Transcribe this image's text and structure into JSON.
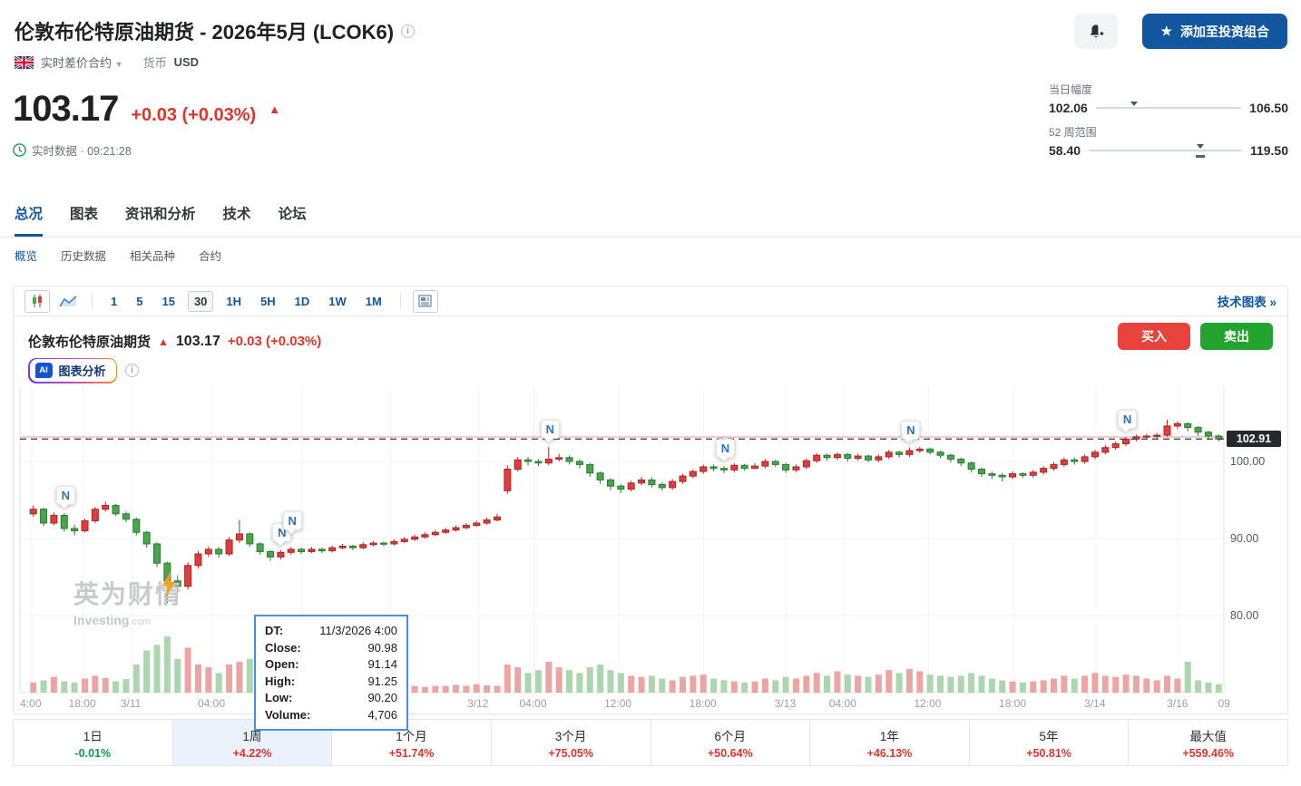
{
  "header": {
    "title": "伦敦布伦特原油期货 - 2026年5月 (LCOK6)",
    "cfd_label": "实时差价合约",
    "currency_label": "货币",
    "currency_value": "USD",
    "price": "103.17",
    "change": "+0.03 (+0.03%)",
    "status_text": "实时数据 · 09:21:28",
    "portfolio_button_label": "添加至投资组合",
    "day_range": {
      "label": "当日幅度",
      "low": "102.06",
      "high": "106.50",
      "pos": 0.26
    },
    "week_range": {
      "label": "52 周范围",
      "low": "58.40",
      "high": "119.50",
      "pos": 0.73
    }
  },
  "tabs": {
    "items": [
      "总况",
      "图表",
      "资讯和分析",
      "技术",
      "论坛"
    ]
  },
  "subtabs": {
    "items": [
      "概览",
      "历史数据",
      "相关品种",
      "合约"
    ]
  },
  "toolbar": {
    "intervals": [
      "1",
      "5",
      "15",
      "30",
      "1H",
      "5H",
      "1D",
      "1W",
      "1M"
    ],
    "active_interval": "30",
    "tech_chart_link": "技术图表 »"
  },
  "chart_header": {
    "name": "伦敦布伦特原油期货",
    "price": "103.17",
    "change": "+0.03 (+0.03%)",
    "buy_label": "买入",
    "sell_label": "卖出",
    "ai_badge": "AI",
    "ai_label": "图表分析"
  },
  "tooltip": {
    "rows": [
      {
        "k": "DT:",
        "v": "11/3/2026 4:00"
      },
      {
        "k": "Close:",
        "v": "90.98"
      },
      {
        "k": "Open:",
        "v": "91.14"
      },
      {
        "k": "High:",
        "v": "91.25"
      },
      {
        "k": "Low:",
        "v": "90.20"
      },
      {
        "k": "Volume:",
        "v": "4,706"
      }
    ]
  },
  "watermark": {
    "cn": "英为财情",
    "en_bold": "Investing",
    "en_suffix": ".com"
  },
  "performance": {
    "items": [
      {
        "label": "1日",
        "value": "-0.01%",
        "dir": "down"
      },
      {
        "label": "1周",
        "value": "+4.22%",
        "dir": "up"
      },
      {
        "label": "1个月",
        "value": "+51.74%",
        "dir": "up"
      },
      {
        "label": "3个月",
        "value": "+75.05%",
        "dir": "up"
      },
      {
        "label": "6个月",
        "value": "+50.64%",
        "dir": "up"
      },
      {
        "label": "1年",
        "value": "+46.13%",
        "dir": "up"
      },
      {
        "label": "5年",
        "value": "+50.81%",
        "dir": "up"
      },
      {
        "label": "最大值",
        "value": "+559.46%",
        "dir": "up"
      }
    ]
  },
  "chart_data": {
    "type": "candlestick+volume",
    "symbol": "LCOK6",
    "interval": "30",
    "y_ticks": [
      100.0,
      90.0,
      80.0
    ],
    "last_price": 102.91,
    "ref_price": 103.17,
    "x_labels": [
      {
        "t": "4:00",
        "p": 0.003
      },
      {
        "t": "18:00",
        "p": 0.046
      },
      {
        "t": "3/11",
        "p": 0.087
      },
      {
        "t": "04:00",
        "p": 0.154
      },
      {
        "t": "12:00",
        "p": 0.229
      },
      {
        "t": "18:00",
        "p": 0.303
      },
      {
        "t": "3/12",
        "p": 0.377
      },
      {
        "t": "04:00",
        "p": 0.423
      },
      {
        "t": "12:00",
        "p": 0.494
      },
      {
        "t": "18:00",
        "p": 0.565
      },
      {
        "t": "3/13",
        "p": 0.634
      },
      {
        "t": "04:00",
        "p": 0.682
      },
      {
        "t": "12:00",
        "p": 0.753
      },
      {
        "t": "18:00",
        "p": 0.824
      },
      {
        "t": "3/14",
        "p": 0.893
      },
      {
        "t": "3/16",
        "p": 0.962
      },
      {
        "t": "09",
        "p": 1.0
      }
    ],
    "news_markers": [
      {
        "i": 3
      },
      {
        "i": 24
      },
      {
        "i": 25,
        "dy": -9
      },
      {
        "i": 50
      },
      {
        "i": 67
      },
      {
        "i": 85
      },
      {
        "i": 106
      }
    ],
    "candles": [
      [
        93.2,
        93.8,
        94.3,
        92.8
      ],
      [
        93.8,
        92.0,
        94.0,
        91.6
      ],
      [
        92.0,
        93.0,
        93.4,
        91.7
      ],
      [
        93.0,
        91.3,
        93.3,
        90.9
      ],
      [
        91.3,
        91.0,
        91.8,
        90.4
      ],
      [
        91.0,
        92.3,
        92.6,
        90.8
      ],
      [
        92.3,
        93.8,
        94.1,
        92.0
      ],
      [
        93.8,
        94.3,
        94.8,
        93.5
      ],
      [
        94.3,
        93.2,
        94.5,
        92.9
      ],
      [
        93.2,
        92.5,
        93.5,
        92.1
      ],
      [
        92.5,
        90.8,
        92.7,
        90.4
      ],
      [
        90.8,
        89.3,
        91.0,
        88.8
      ],
      [
        89.3,
        86.8,
        89.5,
        86.3
      ],
      [
        86.8,
        84.5,
        87.0,
        81.6
      ],
      [
        84.5,
        83.8,
        85.2,
        83.0
      ],
      [
        83.8,
        86.5,
        86.9,
        83.4
      ],
      [
        86.5,
        88.0,
        88.4,
        86.1
      ],
      [
        88.0,
        88.6,
        89.0,
        87.6
      ],
      [
        88.6,
        88.0,
        88.9,
        87.5
      ],
      [
        88.0,
        89.8,
        90.2,
        87.7
      ],
      [
        89.8,
        90.6,
        92.4,
        89.4
      ],
      [
        90.6,
        89.3,
        90.8,
        88.9
      ],
      [
        89.3,
        88.3,
        89.5,
        87.9
      ],
      [
        88.3,
        87.6,
        88.5,
        87.1
      ],
      [
        87.6,
        88.2,
        88.5,
        87.3
      ],
      [
        88.2,
        88.6,
        88.9,
        87.9
      ],
      [
        88.6,
        88.3,
        88.8,
        88.0
      ],
      [
        88.3,
        88.6,
        88.9,
        88.1
      ],
      [
        88.6,
        88.4,
        88.8,
        88.1
      ],
      [
        88.4,
        88.8,
        89.1,
        88.2
      ],
      [
        88.8,
        89.0,
        89.3,
        88.6
      ],
      [
        89.0,
        88.8,
        89.2,
        88.5
      ],
      [
        88.8,
        89.2,
        89.5,
        88.6
      ],
      [
        89.2,
        89.4,
        89.7,
        89.0
      ],
      [
        89.4,
        89.3,
        89.6,
        89.0
      ],
      [
        89.3,
        89.6,
        89.9,
        89.1
      ],
      [
        89.6,
        89.9,
        90.2,
        89.4
      ],
      [
        89.9,
        90.2,
        90.5,
        89.7
      ],
      [
        90.2,
        90.5,
        90.8,
        90.0
      ],
      [
        90.5,
        90.8,
        91.1,
        90.3
      ],
      [
        90.8,
        91.1,
        91.4,
        90.6
      ],
      [
        91.1,
        91.4,
        91.7,
        90.9
      ],
      [
        91.4,
        91.7,
        92.0,
        91.2
      ],
      [
        91.7,
        92.0,
        92.3,
        91.5
      ],
      [
        92.0,
        92.4,
        92.7,
        91.8
      ],
      [
        92.4,
        92.8,
        93.2,
        92.2
      ],
      [
        96.2,
        99.0,
        99.5,
        95.8
      ],
      [
        99.0,
        100.2,
        100.6,
        98.7
      ],
      [
        100.2,
        100.0,
        100.6,
        99.5
      ],
      [
        100.0,
        99.8,
        100.3,
        99.4
      ],
      [
        99.8,
        100.3,
        101.9,
        99.5
      ],
      [
        100.3,
        100.5,
        101.0,
        100.0
      ],
      [
        100.5,
        100.0,
        100.8,
        99.6
      ],
      [
        100.0,
        99.6,
        100.3,
        99.1
      ],
      [
        99.6,
        98.5,
        99.8,
        98.0
      ],
      [
        98.5,
        97.6,
        98.7,
        97.1
      ],
      [
        97.6,
        96.8,
        97.8,
        96.3
      ],
      [
        96.8,
        96.4,
        97.1,
        95.9
      ],
      [
        96.4,
        97.2,
        97.5,
        96.1
      ],
      [
        97.2,
        97.6,
        98.0,
        96.9
      ],
      [
        97.6,
        97.0,
        97.9,
        96.6
      ],
      [
        97.0,
        96.6,
        97.3,
        96.2
      ],
      [
        96.6,
        97.4,
        97.7,
        96.3
      ],
      [
        97.4,
        98.1,
        98.4,
        97.1
      ],
      [
        98.1,
        98.7,
        99.0,
        97.8
      ],
      [
        98.7,
        99.3,
        99.6,
        98.4
      ],
      [
        99.3,
        99.1,
        99.6,
        98.7
      ],
      [
        99.1,
        98.9,
        99.4,
        98.5
      ],
      [
        98.9,
        99.5,
        99.8,
        98.6
      ],
      [
        99.5,
        99.1,
        99.7,
        98.8
      ],
      [
        99.1,
        99.4,
        99.8,
        99.0
      ],
      [
        99.4,
        100.0,
        100.3,
        99.1
      ],
      [
        100.0,
        99.6,
        100.2,
        99.3
      ],
      [
        99.6,
        98.9,
        99.8,
        98.5
      ],
      [
        98.9,
        99.3,
        99.6,
        98.6
      ],
      [
        99.3,
        100.1,
        100.4,
        99.0
      ],
      [
        100.1,
        100.8,
        101.1,
        99.8
      ],
      [
        100.8,
        100.5,
        101.0,
        100.1
      ],
      [
        100.5,
        100.9,
        101.2,
        100.2
      ],
      [
        100.9,
        100.4,
        101.1,
        100.0
      ],
      [
        100.4,
        100.7,
        101.0,
        100.1
      ],
      [
        100.7,
        100.2,
        100.9,
        99.9
      ],
      [
        100.2,
        100.6,
        100.9,
        99.9
      ],
      [
        100.6,
        101.2,
        101.5,
        100.3
      ],
      [
        101.2,
        100.9,
        101.4,
        100.5
      ],
      [
        100.9,
        101.4,
        101.8,
        100.6
      ],
      [
        101.4,
        101.6,
        101.9,
        101.1
      ],
      [
        101.6,
        101.2,
        101.8,
        100.9
      ],
      [
        101.2,
        100.8,
        101.4,
        100.4
      ],
      [
        100.8,
        100.3,
        101.0,
        99.9
      ],
      [
        100.3,
        99.8,
        100.5,
        99.4
      ],
      [
        99.8,
        99.0,
        100.0,
        98.6
      ],
      [
        99.0,
        98.4,
        99.2,
        98.0
      ],
      [
        98.4,
        98.2,
        98.7,
        97.7
      ],
      [
        98.2,
        98.0,
        98.5,
        97.4
      ],
      [
        98.0,
        98.4,
        98.7,
        97.7
      ],
      [
        98.4,
        98.2,
        98.6,
        97.9
      ],
      [
        98.2,
        98.6,
        98.9,
        97.9
      ],
      [
        98.6,
        99.1,
        99.4,
        98.3
      ],
      [
        99.1,
        99.6,
        99.9,
        98.8
      ],
      [
        99.6,
        100.2,
        100.5,
        99.3
      ],
      [
        100.2,
        100.0,
        100.5,
        99.6
      ],
      [
        100.0,
        100.6,
        100.9,
        99.7
      ],
      [
        100.6,
        101.2,
        101.5,
        100.3
      ],
      [
        101.2,
        101.8,
        102.1,
        100.9
      ],
      [
        101.8,
        102.3,
        102.6,
        101.5
      ],
      [
        102.3,
        102.9,
        103.2,
        102.0
      ],
      [
        102.9,
        103.2,
        103.5,
        102.6
      ],
      [
        103.2,
        103.3,
        103.6,
        102.9
      ],
      [
        103.3,
        103.4,
        103.7,
        103.0
      ],
      [
        103.4,
        104.6,
        105.4,
        103.2
      ],
      [
        104.6,
        104.9,
        105.2,
        104.2
      ],
      [
        104.9,
        104.4,
        105.1,
        103.9
      ],
      [
        104.4,
        103.8,
        104.6,
        103.3
      ],
      [
        103.8,
        103.3,
        104.0,
        102.9
      ],
      [
        103.3,
        102.9,
        103.5,
        102.6
      ]
    ],
    "volume": [
      0.18,
      0.22,
      0.28,
      0.2,
      0.18,
      0.25,
      0.3,
      0.26,
      0.2,
      0.24,
      0.5,
      0.75,
      0.85,
      1.0,
      0.6,
      0.8,
      0.5,
      0.45,
      0.35,
      0.5,
      0.55,
      0.6,
      0.45,
      0.4,
      0.35,
      0.3,
      0.28,
      0.25,
      0.22,
      0.2,
      0.22,
      0.18,
      0.16,
      0.14,
      0.12,
      0.12,
      0.1,
      0.12,
      0.1,
      0.12,
      0.12,
      0.14,
      0.12,
      0.15,
      0.13,
      0.12,
      0.5,
      0.45,
      0.35,
      0.4,
      0.55,
      0.45,
      0.4,
      0.35,
      0.45,
      0.5,
      0.4,
      0.35,
      0.3,
      0.28,
      0.3,
      0.25,
      0.22,
      0.28,
      0.3,
      0.32,
      0.25,
      0.22,
      0.2,
      0.18,
      0.2,
      0.25,
      0.22,
      0.28,
      0.25,
      0.3,
      0.35,
      0.3,
      0.38,
      0.32,
      0.3,
      0.28,
      0.32,
      0.4,
      0.35,
      0.42,
      0.38,
      0.32,
      0.3,
      0.28,
      0.3,
      0.35,
      0.3,
      0.25,
      0.22,
      0.2,
      0.18,
      0.2,
      0.22,
      0.25,
      0.3,
      0.25,
      0.3,
      0.35,
      0.3,
      0.28,
      0.32,
      0.3,
      0.25,
      0.22,
      0.3,
      0.25,
      0.55,
      0.22,
      0.18,
      0.15
    ],
    "colors": {
      "up": "#e23b3b",
      "up_border": "#a62822",
      "down": "#48a74c",
      "down_border": "#2a7a2e",
      "vol_up": "#eda5a2",
      "vol_down": "#abd6ae",
      "grid": "#f1f3f4",
      "axis": "#e3e6e8",
      "last_line": "#34383d",
      "ref_line": "#f5bcb8"
    }
  }
}
